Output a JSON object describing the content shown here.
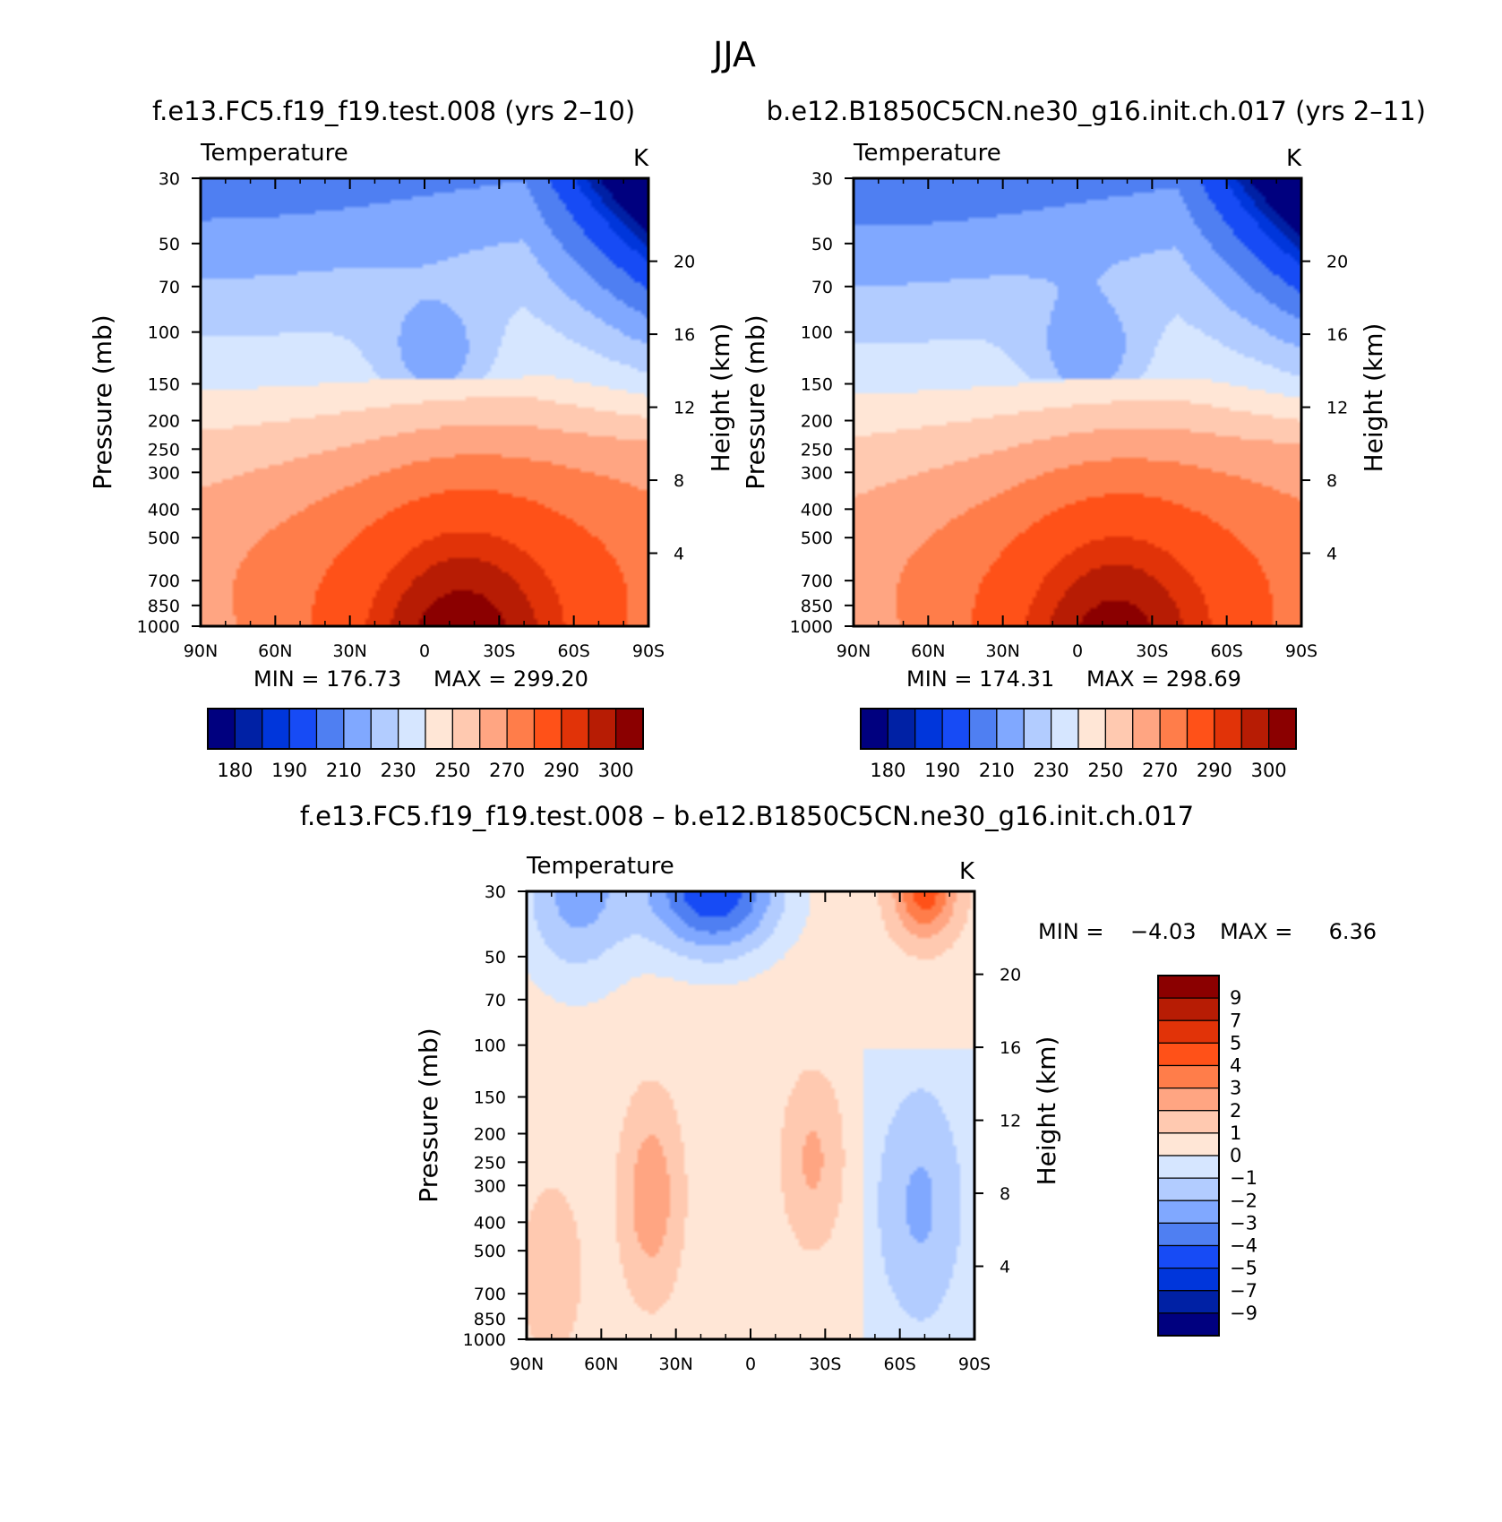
{
  "page": {
    "title": "JJA",
    "top_left_heading": "f.e13.FC5.f19_f19.test.008 (yrs 2–10)",
    "top_right_heading": "b.e12.B1850C5CN.ne30_g16.init.ch.017 (yrs 2–11)",
    "bottom_heading": "f.e13.FC5.f19_f19.test.008 – b.e12.B1850C5CN.ne30_g16.init.ch.017"
  },
  "chart_data": [
    {
      "type": "contour",
      "name": "panel-control-run",
      "title": "Temperature",
      "units": "K",
      "xlabel": "",
      "ylabel": "Pressure (mb)",
      "ylabel_right": "Height (km)",
      "x_ticks": [
        "90N",
        "60N",
        "30N",
        "0",
        "30S",
        "60S",
        "90S"
      ],
      "x_range": [
        90,
        -90
      ],
      "y_ticks": [
        30,
        50,
        70,
        100,
        150,
        200,
        250,
        300,
        400,
        500,
        700,
        850,
        1000
      ],
      "y_range_mb": [
        30,
        1000
      ],
      "height_ticks_km": [
        4,
        8,
        12,
        16,
        20
      ],
      "min_label": "MIN = 176.73",
      "max_label": "MAX = 299.20",
      "min": 176.73,
      "max": 299.2,
      "colorbar_labels": [
        "180",
        "190",
        "210",
        "230",
        "250",
        "270",
        "290",
        "300"
      ],
      "levels": [
        180,
        185,
        190,
        200,
        210,
        220,
        230,
        240,
        250,
        260,
        270,
        280,
        290,
        295,
        300
      ]
    },
    {
      "type": "contour",
      "name": "panel-test-run",
      "title": "Temperature",
      "units": "K",
      "xlabel": "",
      "ylabel": "Pressure (mb)",
      "ylabel_right": "Height (km)",
      "x_ticks": [
        "90N",
        "60N",
        "30N",
        "0",
        "30S",
        "60S",
        "90S"
      ],
      "x_range": [
        90,
        -90
      ],
      "y_ticks": [
        30,
        50,
        70,
        100,
        150,
        200,
        250,
        300,
        400,
        500,
        700,
        850,
        1000
      ],
      "y_range_mb": [
        30,
        1000
      ],
      "height_ticks_km": [
        4,
        8,
        12,
        16,
        20
      ],
      "min_label": "MIN = 174.31",
      "max_label": "MAX = 298.69",
      "min": 174.31,
      "max": 298.69,
      "colorbar_labels": [
        "180",
        "190",
        "210",
        "230",
        "250",
        "270",
        "290",
        "300"
      ],
      "levels": [
        180,
        185,
        190,
        200,
        210,
        220,
        230,
        240,
        250,
        260,
        270,
        280,
        290,
        295,
        300
      ]
    },
    {
      "type": "contour",
      "name": "panel-difference",
      "title": "Temperature",
      "units": "K",
      "xlabel": "",
      "ylabel": "Pressure (mb)",
      "ylabel_right": "Height (km)",
      "x_ticks": [
        "90N",
        "60N",
        "30N",
        "0",
        "30S",
        "60S",
        "90S"
      ],
      "x_range": [
        90,
        -90
      ],
      "y_ticks": [
        30,
        50,
        70,
        100,
        150,
        200,
        250,
        300,
        400,
        500,
        700,
        850,
        1000
      ],
      "y_range_mb": [
        30,
        1000
      ],
      "height_ticks_km": [
        4,
        8,
        12,
        16,
        20
      ],
      "min_label": "MIN =",
      "min_value_label": "−4.03",
      "max_label": "MAX =",
      "max_value_label": "6.36",
      "min": -4.03,
      "max": 6.36,
      "colorbar_labels": [
        "9",
        "7",
        "5",
        "4",
        "3",
        "2",
        "1",
        "0",
        "−1",
        "−2",
        "−3",
        "−4",
        "−5",
        "−7",
        "−9"
      ],
      "levels": [
        -9,
        -7,
        -5,
        -4,
        -3,
        -2,
        -1,
        0,
        1,
        2,
        3,
        4,
        5,
        7,
        9
      ]
    }
  ],
  "colors": {
    "cold_to_warm": [
      "#00007f",
      "#0021a5",
      "#0036db",
      "#174bf5",
      "#4f7ff2",
      "#80a8ff",
      "#b2ccff",
      "#d6e6ff",
      "#ffe6d6",
      "#ffc9b0",
      "#ffa582",
      "#ff7d4a",
      "#ff5118",
      "#e13308",
      "#b71c04",
      "#8b0000"
    ]
  }
}
